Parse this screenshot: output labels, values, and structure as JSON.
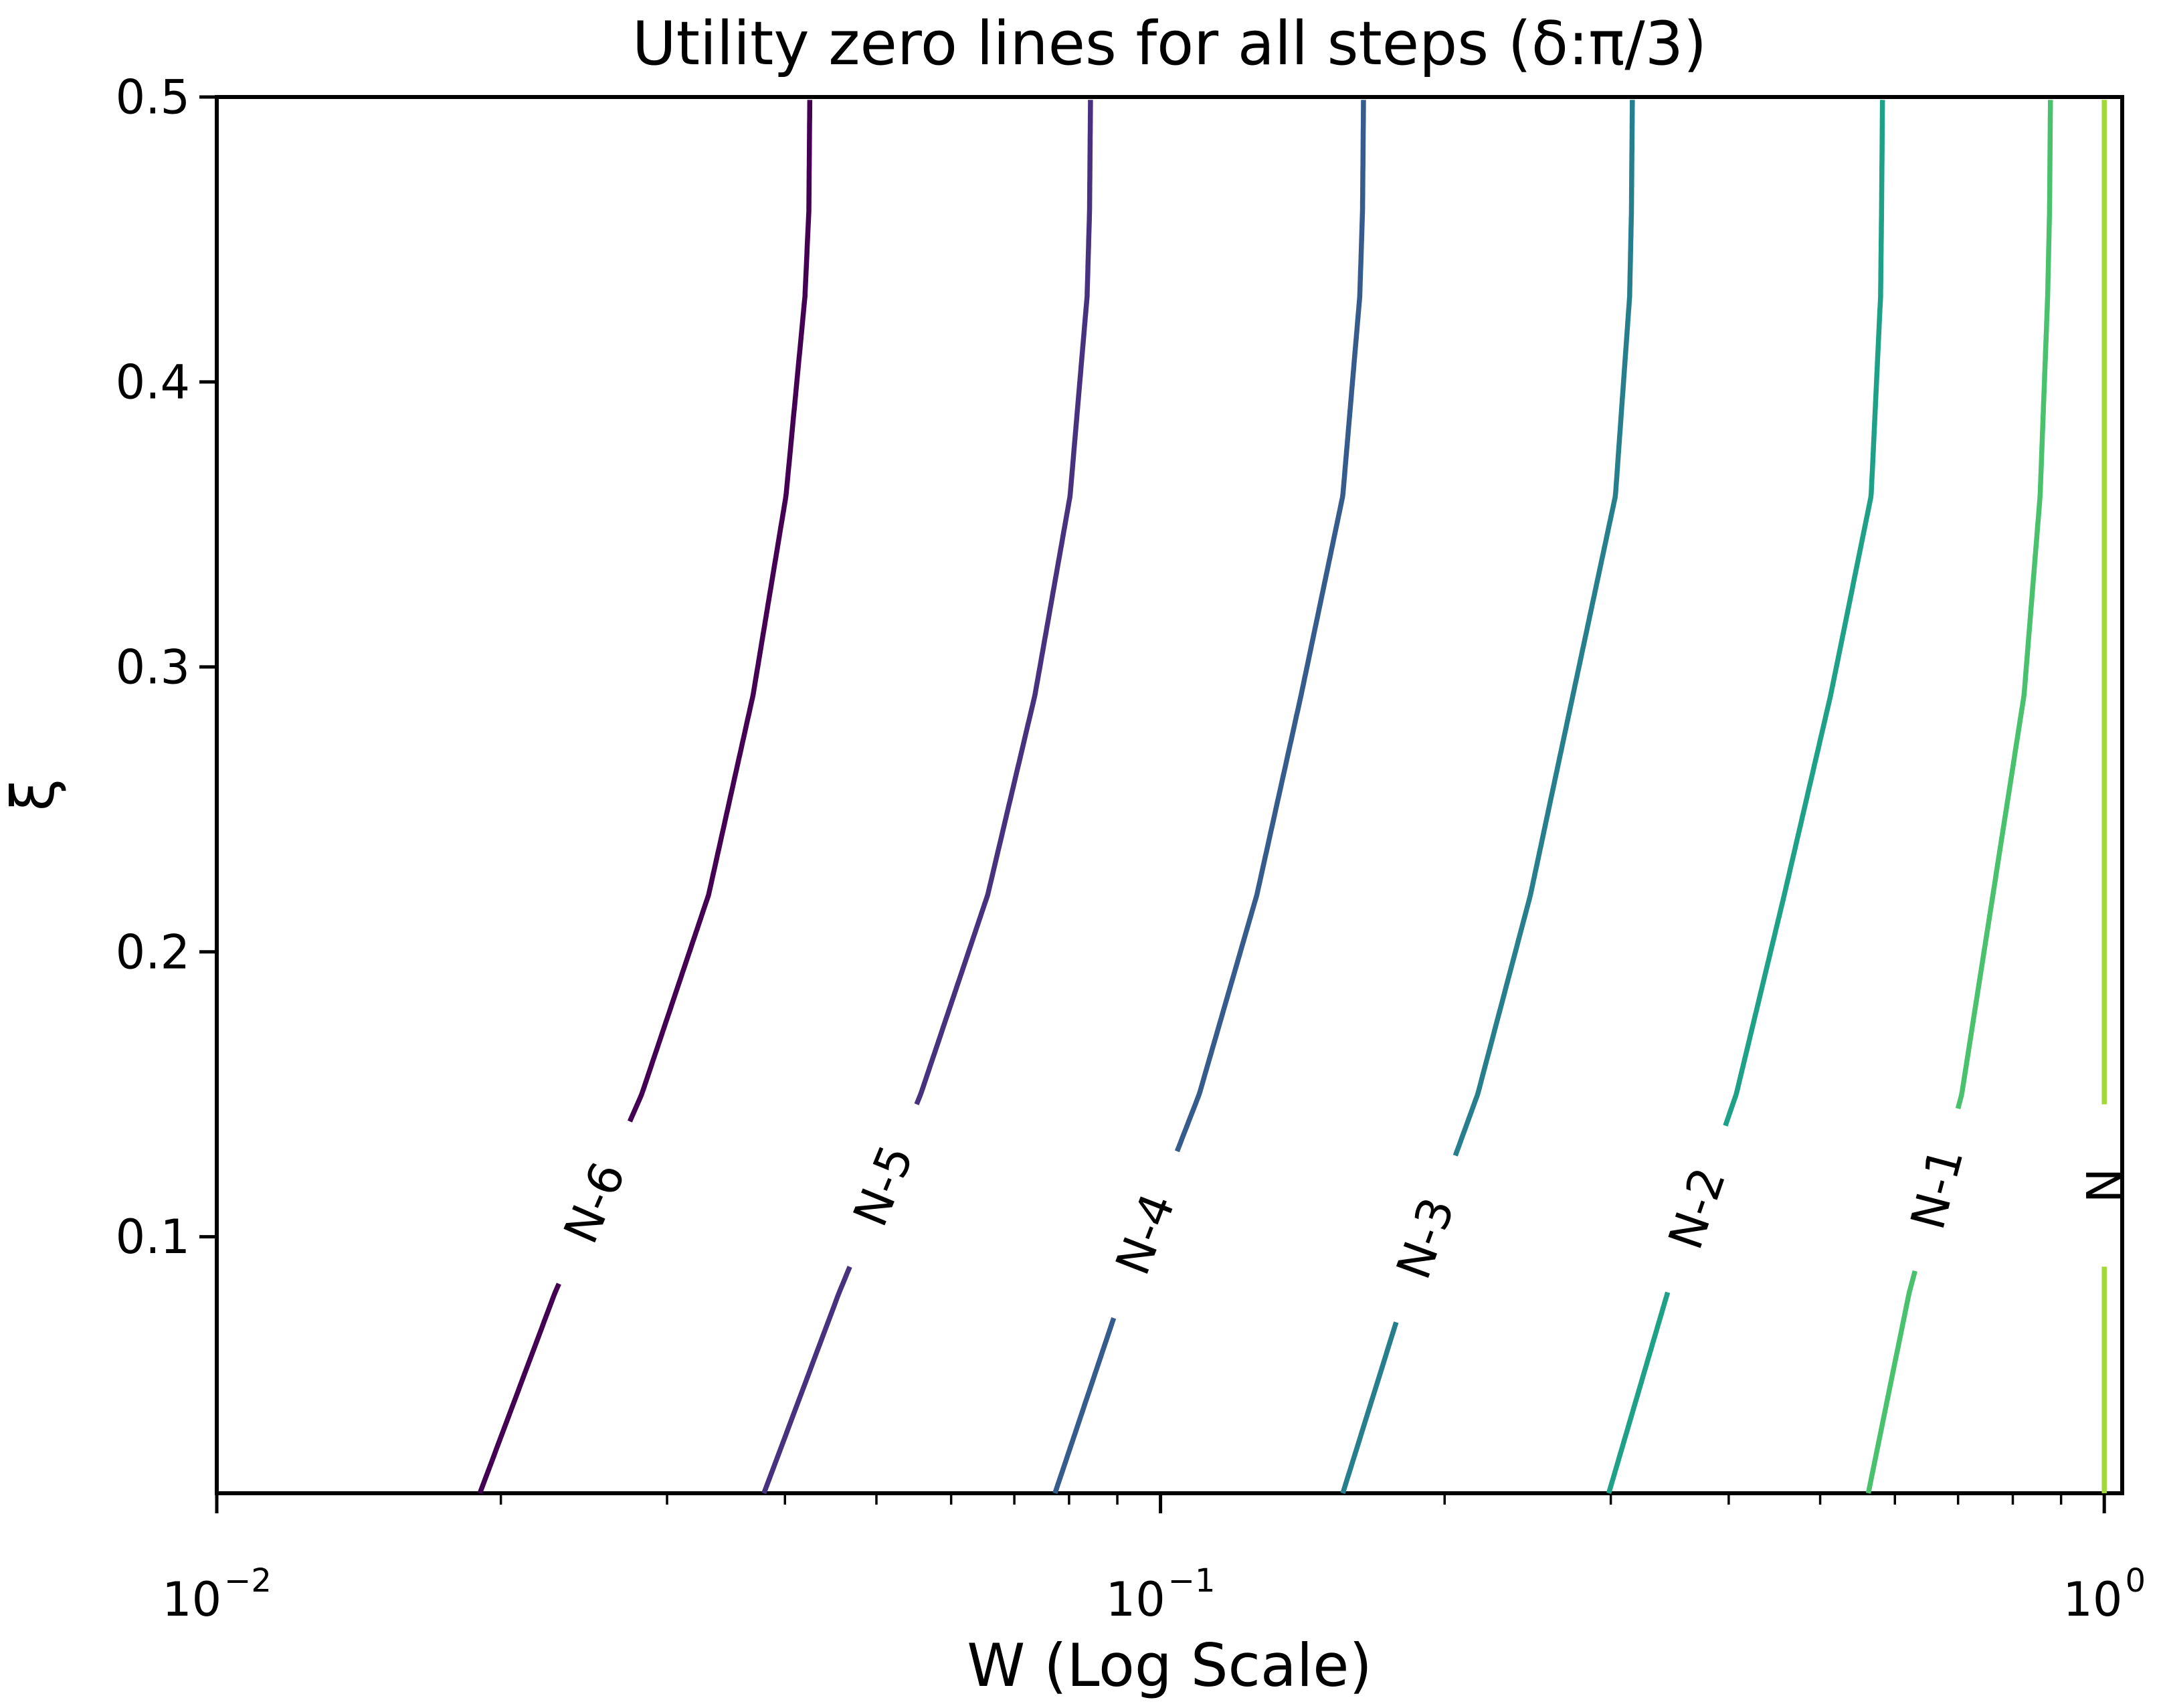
{
  "chart_data": {
    "type": "line",
    "title": "Utility zero lines for all steps (δ:π/3)",
    "xlabel": "W (Log Scale)",
    "ylabel": "ξ",
    "x_scale": "log10",
    "xlim_log10": [
      -2,
      0.019
    ],
    "ylim": [
      0.01,
      0.5
    ],
    "grid": false,
    "legend": "inline-contour-labels",
    "frame_color": "#000000",
    "x_major_ticks": [
      {
        "mantissa": "10",
        "exponent": "−2",
        "log10": -2
      },
      {
        "mantissa": "10",
        "exponent": "−1",
        "log10": -1
      },
      {
        "mantissa": "10",
        "exponent": "0",
        "log10": 0
      }
    ],
    "x_minor_ticks_log10": [
      -1.69897,
      -1.52288,
      -1.39794,
      -1.30103,
      -1.22185,
      -1.1549,
      -1.09691,
      -1.04576,
      -0.69897,
      -0.52288,
      -0.39794,
      -0.30103,
      -0.22185,
      -0.1549,
      -0.09691,
      -0.04576
    ],
    "y_ticks": [
      {
        "label": "0.5",
        "value": 0.5
      },
      {
        "label": "0.4",
        "value": 0.4
      },
      {
        "label": "0.3",
        "value": 0.3
      },
      {
        "label": "0.2",
        "value": 0.2
      },
      {
        "label": "0.1",
        "value": 0.1
      }
    ],
    "series": [
      {
        "label": "N-6",
        "color": "#440154",
        "label_xi": 0.112,
        "points": [
          {
            "xi": 0.01,
            "w": 0.019
          },
          {
            "xi": 0.08,
            "w": 0.0228
          },
          {
            "xi": 0.15,
            "w": 0.0282
          },
          {
            "xi": 0.22,
            "w": 0.0332
          },
          {
            "xi": 0.29,
            "w": 0.037
          },
          {
            "xi": 0.36,
            "w": 0.0401
          },
          {
            "xi": 0.43,
            "w": 0.042
          },
          {
            "xi": 0.46,
            "w": 0.0424
          },
          {
            "xi": 0.5,
            "w": 0.0425
          }
        ]
      },
      {
        "label": "N-5",
        "color": "#46327e",
        "label_xi": 0.118,
        "points": [
          {
            "xi": 0.01,
            "w": 0.038
          },
          {
            "xi": 0.08,
            "w": 0.0456
          },
          {
            "xi": 0.15,
            "w": 0.0557
          },
          {
            "xi": 0.22,
            "w": 0.0656
          },
          {
            "xi": 0.29,
            "w": 0.0736
          },
          {
            "xi": 0.36,
            "w": 0.0802
          },
          {
            "xi": 0.43,
            "w": 0.0836
          },
          {
            "xi": 0.46,
            "w": 0.0841
          },
          {
            "xi": 0.5,
            "w": 0.0843
          }
        ]
      },
      {
        "label": "N-4",
        "color": "#365c8d",
        "label_xi": 0.101,
        "points": [
          {
            "xi": 0.01,
            "w": 0.0773
          },
          {
            "xi": 0.08,
            "w": 0.091
          },
          {
            "xi": 0.15,
            "w": 0.1099
          },
          {
            "xi": 0.22,
            "w": 0.1265
          },
          {
            "xi": 0.29,
            "w": 0.1409
          },
          {
            "xi": 0.36,
            "w": 0.156
          },
          {
            "xi": 0.43,
            "w": 0.1626
          },
          {
            "xi": 0.46,
            "w": 0.1637
          },
          {
            "xi": 0.5,
            "w": 0.1641
          }
        ]
      },
      {
        "label": "N-3",
        "color": "#277f8e",
        "label_xi": 0.0995,
        "points": [
          {
            "xi": 0.01,
            "w": 0.156
          },
          {
            "xi": 0.08,
            "w": 0.1816
          },
          {
            "xi": 0.15,
            "w": 0.2168
          },
          {
            "xi": 0.22,
            "w": 0.2466
          },
          {
            "xi": 0.29,
            "w": 0.2735
          },
          {
            "xi": 0.36,
            "w": 0.3034
          },
          {
            "xi": 0.43,
            "w": 0.3141
          },
          {
            "xi": 0.46,
            "w": 0.3155
          },
          {
            "xi": 0.5,
            "w": 0.3162
          }
        ]
      },
      {
        "label": "N-2",
        "color": "#1fa187",
        "label_xi": 0.11,
        "points": [
          {
            "xi": 0.01,
            "w": 0.2985
          },
          {
            "xi": 0.08,
            "w": 0.3443
          },
          {
            "xi": 0.15,
            "w": 0.4074
          },
          {
            "xi": 0.22,
            "w": 0.4581
          },
          {
            "xi": 0.29,
            "w": 0.5129
          },
          {
            "xi": 0.36,
            "w": 0.5662
          },
          {
            "xi": 0.43,
            "w": 0.5794
          },
          {
            "xi": 0.46,
            "w": 0.5808
          },
          {
            "xi": 0.5,
            "w": 0.5821
          }
        ]
      },
      {
        "label": "N-1",
        "color": "#4ac16d",
        "label_xi": 0.117,
        "points": [
          {
            "xi": 0.01,
            "w": 0.5623
          },
          {
            "xi": 0.08,
            "w": 0.6209
          },
          {
            "xi": 0.15,
            "w": 0.7063
          },
          {
            "xi": 0.22,
            "w": 0.7621
          },
          {
            "xi": 0.29,
            "w": 0.8222
          },
          {
            "xi": 0.36,
            "w": 0.8551
          },
          {
            "xi": 0.43,
            "w": 0.871
          },
          {
            "xi": 0.46,
            "w": 0.875
          },
          {
            "xi": 0.5,
            "w": 0.877
          }
        ]
      },
      {
        "label": "N",
        "color": "#a0da39",
        "label_xi": 0.118,
        "points": [
          {
            "xi": 0.01,
            "w": 1.0
          },
          {
            "xi": 0.5,
            "w": 1.0
          }
        ]
      }
    ]
  }
}
